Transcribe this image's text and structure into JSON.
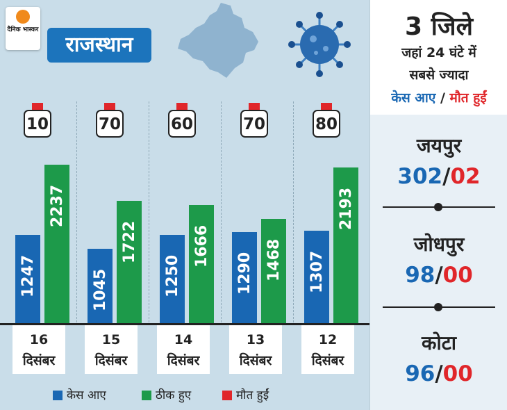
{
  "brand": {
    "logo_text": "दैनिक भास्कर"
  },
  "header": {
    "state": "राजस्थान"
  },
  "chart_data": {
    "type": "bar",
    "categories": [
      "16 दिसंबर",
      "15 दिसंबर",
      "14 दिसंबर",
      "13 दिसंबर",
      "12 दिसंबर"
    ],
    "series": [
      {
        "name": "केस आए",
        "color": "#1967b3",
        "values": [
          1247,
          1045,
          1250,
          1290,
          1307
        ]
      },
      {
        "name": "ठीक हुए",
        "color": "#1d9a4a",
        "values": [
          2237,
          1722,
          1666,
          1468,
          2193
        ]
      },
      {
        "name": "मौत हुईं",
        "color": "#e0262a",
        "values": [
          10,
          70,
          60,
          70,
          80
        ]
      }
    ],
    "ylim": [
      0,
      2600
    ],
    "grid": false,
    "legend_position": "bottom"
  },
  "dates": [
    {
      "day": "16",
      "month": "दिसंबर"
    },
    {
      "day": "15",
      "month": "दिसंबर"
    },
    {
      "day": "14",
      "month": "दिसंबर"
    },
    {
      "day": "13",
      "month": "दिसंबर"
    },
    {
      "day": "12",
      "month": "दिसंबर"
    }
  ],
  "legend": {
    "cases": "केस आए",
    "recovered": "ठीक हुए",
    "deaths": "मौत हुईं"
  },
  "side_panel": {
    "title": "3 जिले",
    "subtitle_line1": "जहां 24 घंटे में",
    "subtitle_line2": "सबसे ज्यादा",
    "legend_cases": "केस आए",
    "legend_sep": " / ",
    "legend_deaths": "मौत हुईं",
    "districts": [
      {
        "name": "जयपुर",
        "cases": "302",
        "sep": "/",
        "deaths": "02"
      },
      {
        "name": "जोधपुर",
        "cases": "98",
        "sep": "/",
        "deaths": "00"
      },
      {
        "name": "कोटा",
        "cases": "96",
        "sep": "/",
        "deaths": "00"
      }
    ]
  },
  "colors": {
    "blue": "#1967b3",
    "green": "#1d9a4a",
    "red": "#e0262a",
    "background": "#c9dde9",
    "map": "#8fb3cf"
  },
  "icons": {
    "map": "rajasthan-map-icon",
    "virus": "coronavirus-icon",
    "logo": "dainik-bhaskar-logo"
  }
}
